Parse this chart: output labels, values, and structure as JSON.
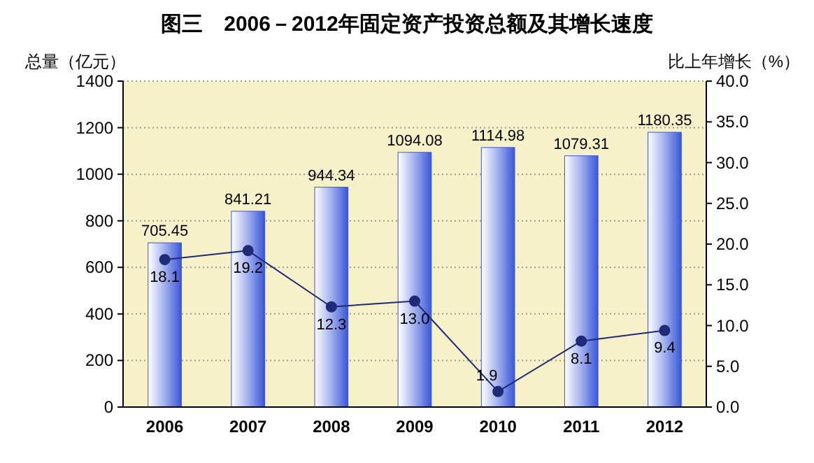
{
  "chart_data": {
    "type": "bar",
    "title": "图三　2006－2012年固定资产投资总额及其增长速度",
    "ylabel": "总量（亿元）",
    "y2label": "比上年增长（%）",
    "categories": [
      "2006",
      "2007",
      "2008",
      "2009",
      "2010",
      "2011",
      "2012"
    ],
    "series": [
      {
        "color": "#3a56d8",
        "values": [
          705.45,
          841.21,
          944.34,
          1094.08,
          1114.98,
          1079.31,
          1180.35
        ]
      },
      {
        "type": "line",
        "axis": "y2",
        "color": "#1f2a78",
        "values": [
          18.1,
          19.2,
          12.3,
          13.0,
          1.9,
          8.1,
          9.4
        ],
        "value_labels": [
          "18.1",
          "19.2",
          "12.3",
          "13.0",
          "1.9",
          "8.1",
          "9.4"
        ]
      }
    ],
    "ylim": [
      0,
      1400
    ],
    "yticks": [
      0,
      200,
      400,
      600,
      800,
      1000,
      1200,
      1400
    ],
    "y2lim": [
      0,
      40
    ],
    "y2ticks": [
      {
        "value": 0,
        "label": "0.0"
      },
      {
        "value": 5,
        "label": "5.0"
      },
      {
        "value": 10,
        "label": "10.0"
      },
      {
        "value": 15,
        "label": "15.0"
      },
      {
        "value": 20,
        "label": "20.0"
      },
      {
        "value": 25,
        "label": "25.0"
      },
      {
        "value": 30,
        "label": "30.0"
      },
      {
        "value": 35,
        "label": "35.0"
      },
      {
        "value": 40,
        "label": "40.0"
      }
    ],
    "grid": "y",
    "data_labels": true,
    "marker": "circle",
    "line_style": "solid"
  }
}
